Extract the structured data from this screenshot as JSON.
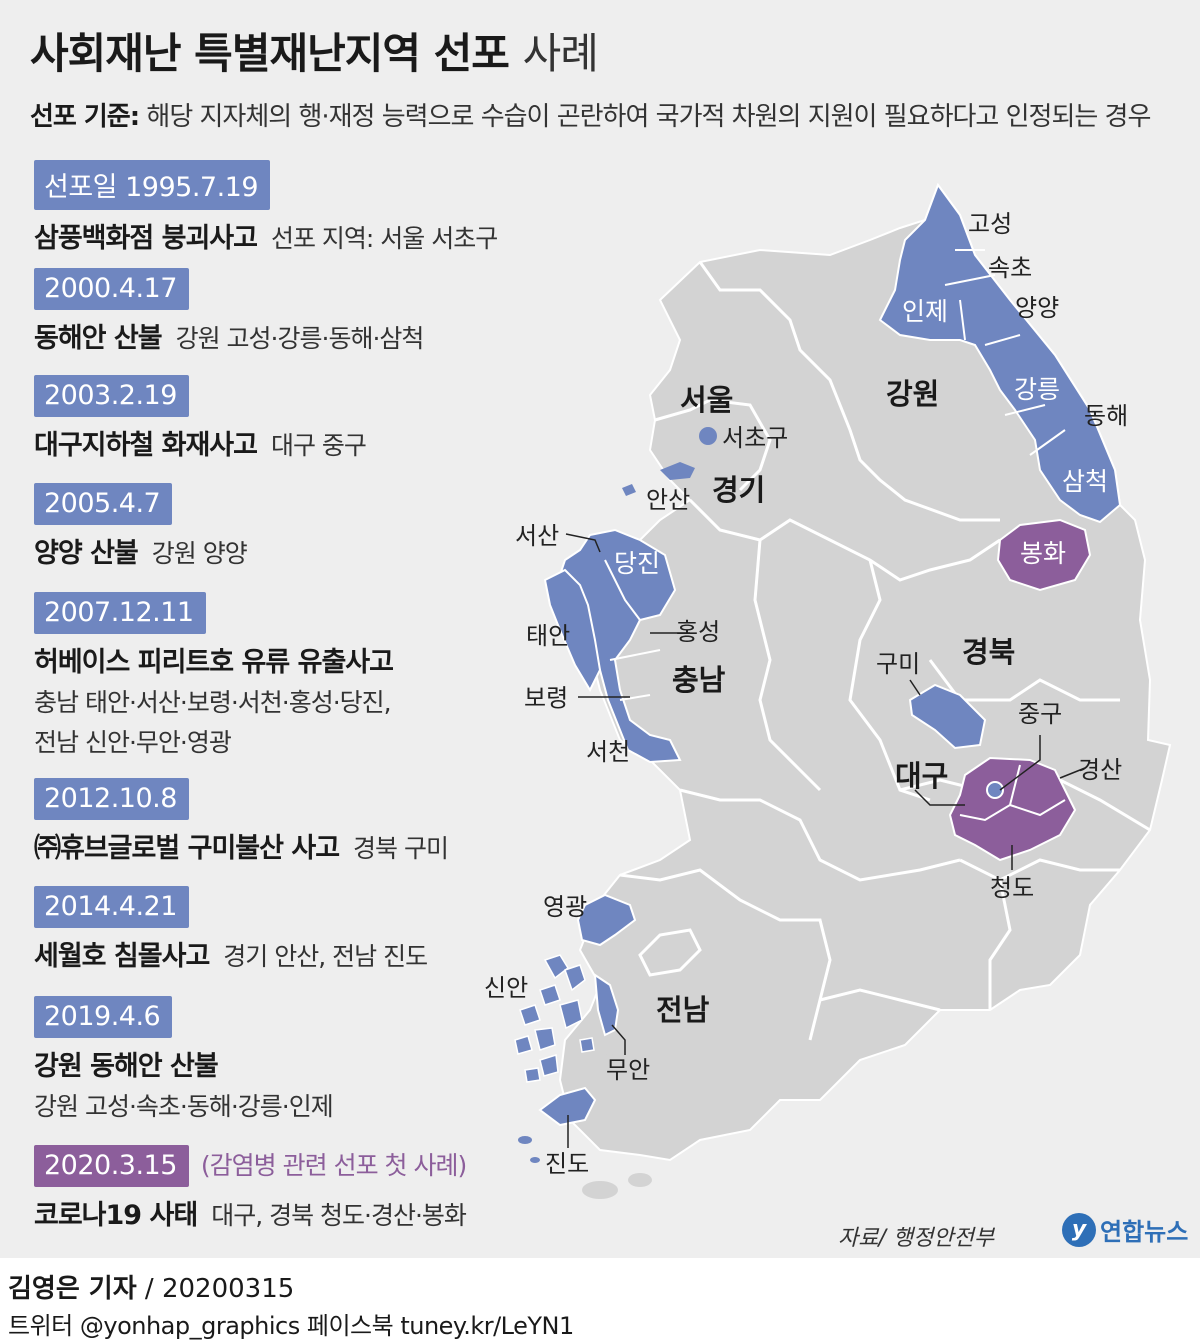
{
  "title": {
    "main": "사회재난 특별재난지역 선포",
    "suffix": "사례"
  },
  "criteria": {
    "label": "선포 기준:",
    "text": "해당 지자체의 행·재정 능력으로 수습이 곤란하여 국가적 차원의 지원이 필요하다고 인정되는 경우"
  },
  "events": [
    {
      "date": "선포일 1995.7.19",
      "name": "삼풍백화점 붕괴사고",
      "areas": "선포 지역: 서울 서초구"
    },
    {
      "date": "2000.4.17",
      "name": "동해안 산불",
      "areas": "강원 고성·강릉·동해·삼척"
    },
    {
      "date": "2003.2.19",
      "name": "대구지하철 화재사고",
      "areas": "대구 중구"
    },
    {
      "date": "2005.4.7",
      "name": "양양 산불",
      "areas": "강원 양양"
    },
    {
      "date": "2007.12.11",
      "name": "허베이스 피리트호 유류 유출사고",
      "areas": "충남 태안·서산·보령·서천·홍성·당진,",
      "areas2": "전남 신안·무안·영광"
    },
    {
      "date": "2012.10.8",
      "name": "㈜휴브글로벌 구미불산 사고",
      "areas": "경북 구미"
    },
    {
      "date": "2014.4.21",
      "name": "세월호 침몰사고",
      "areas": "경기 안산, 전남 진도"
    },
    {
      "date": "2019.4.6",
      "name": "강원 동해안 산불",
      "areas": "",
      "areas2": "강원 고성·속초·동해·강릉·인제"
    },
    {
      "date": "2020.3.15",
      "note": "(감염병 관련 선포 첫 사례)",
      "name": "코로나19 사태",
      "areas": "대구, 경북 청도·경산·봉화"
    }
  ],
  "map": {
    "provinces": {
      "seoul": "서울",
      "gyeonggi": "경기",
      "gangwon": "강원",
      "chungnam": "충남",
      "gyeongbuk": "경북",
      "daegu": "대구",
      "jeonnam": "전남"
    },
    "regions": {
      "goseong": "고성",
      "sokcho": "속초",
      "inje": "인제",
      "yangyang": "양양",
      "gangneung": "강릉",
      "donghae": "동해",
      "samcheok": "삼척",
      "seocho": "서초구",
      "ansan": "안산",
      "seosan": "서산",
      "dangjin": "당진",
      "taean": "태안",
      "hongseong": "홍성",
      "boryeong": "보령",
      "seocheon": "서천",
      "bonghwa": "봉화",
      "gumi": "구미",
      "junggu": "중구",
      "gyeongsan": "경산",
      "cheongdo": "청도",
      "yeonggwang": "영광",
      "sinan": "신안",
      "muan": "무안",
      "jindo": "진도"
    },
    "colors": {
      "land": "#d3d3d3",
      "declared": "#6f86c0",
      "covid": "#8c5e9b",
      "border": "#ffffff"
    }
  },
  "source": "자료/ 행정안전부",
  "logo": "연합뉴스",
  "byline": {
    "reporter": "김영은 기자",
    "date": "/ 20200315"
  },
  "social": "트위터 @yonhap_graphics  페이스북 tuney.kr/LeYN1"
}
